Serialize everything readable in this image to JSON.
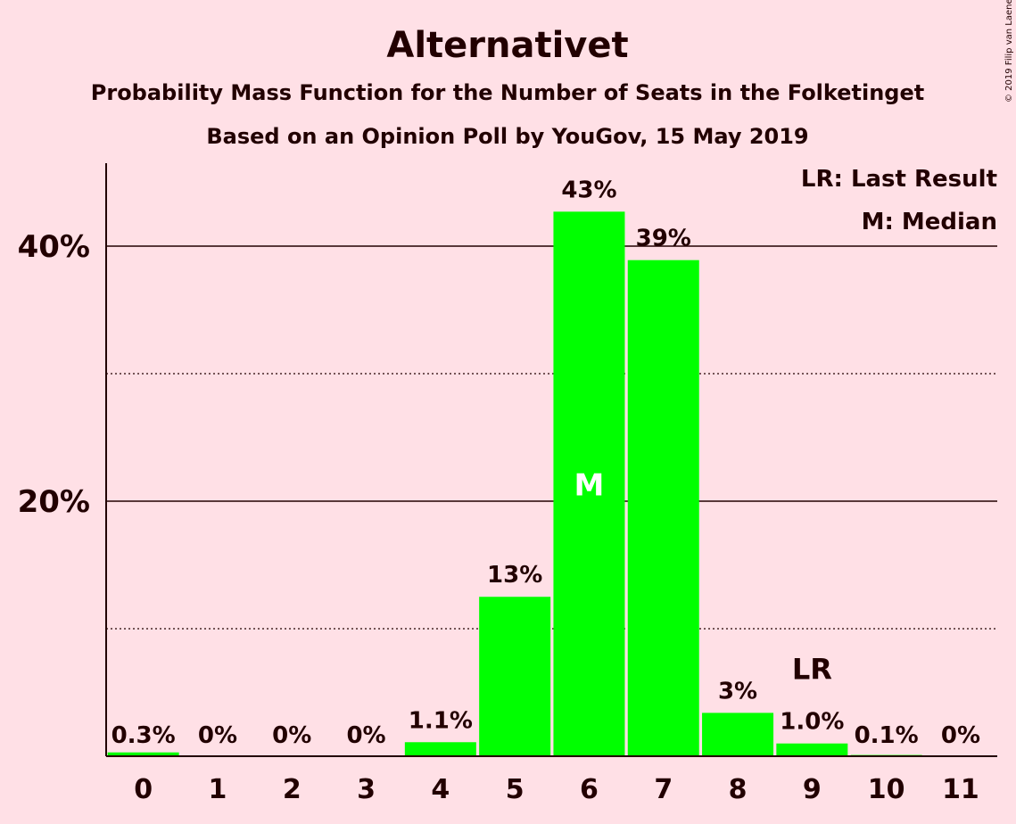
{
  "title": "Alternativet",
  "subtitle1": "Probability Mass Function for the Number of Seats in the Folketinget",
  "subtitle2": "Based on an Opinion Poll by YouGov, 15 May 2019",
  "copyright": "© 2019 Filip van Laenen",
  "legend": {
    "last_result": "LR: Last Result",
    "median": "M: Median"
  },
  "colors": {
    "background": "#ffe0e6",
    "bar": "#00ff00",
    "text": "#220000"
  },
  "chart_data": {
    "type": "bar",
    "categories": [
      "0",
      "1",
      "2",
      "3",
      "4",
      "5",
      "6",
      "7",
      "8",
      "9",
      "10",
      "11"
    ],
    "values": [
      0.3,
      0,
      0,
      0,
      1.1,
      12.5,
      42.7,
      38.9,
      3.4,
      1.0,
      0.1,
      0
    ],
    "data_labels": [
      "0.3%",
      "0%",
      "0%",
      "0%",
      "1.1%",
      "13%",
      "43%",
      "39%",
      "3%",
      "1.0%",
      "0.1%",
      "0%"
    ],
    "ylim": [
      0,
      46.5
    ],
    "yticks": [
      {
        "value": 20,
        "label": "20%"
      },
      {
        "value": 40,
        "label": "40%"
      }
    ],
    "minor_gridlines": [
      10,
      30
    ],
    "median_index": 6,
    "median_marker": "M",
    "last_result_index": 9,
    "last_result_marker": "LR",
    "legend_position": "top-right"
  }
}
